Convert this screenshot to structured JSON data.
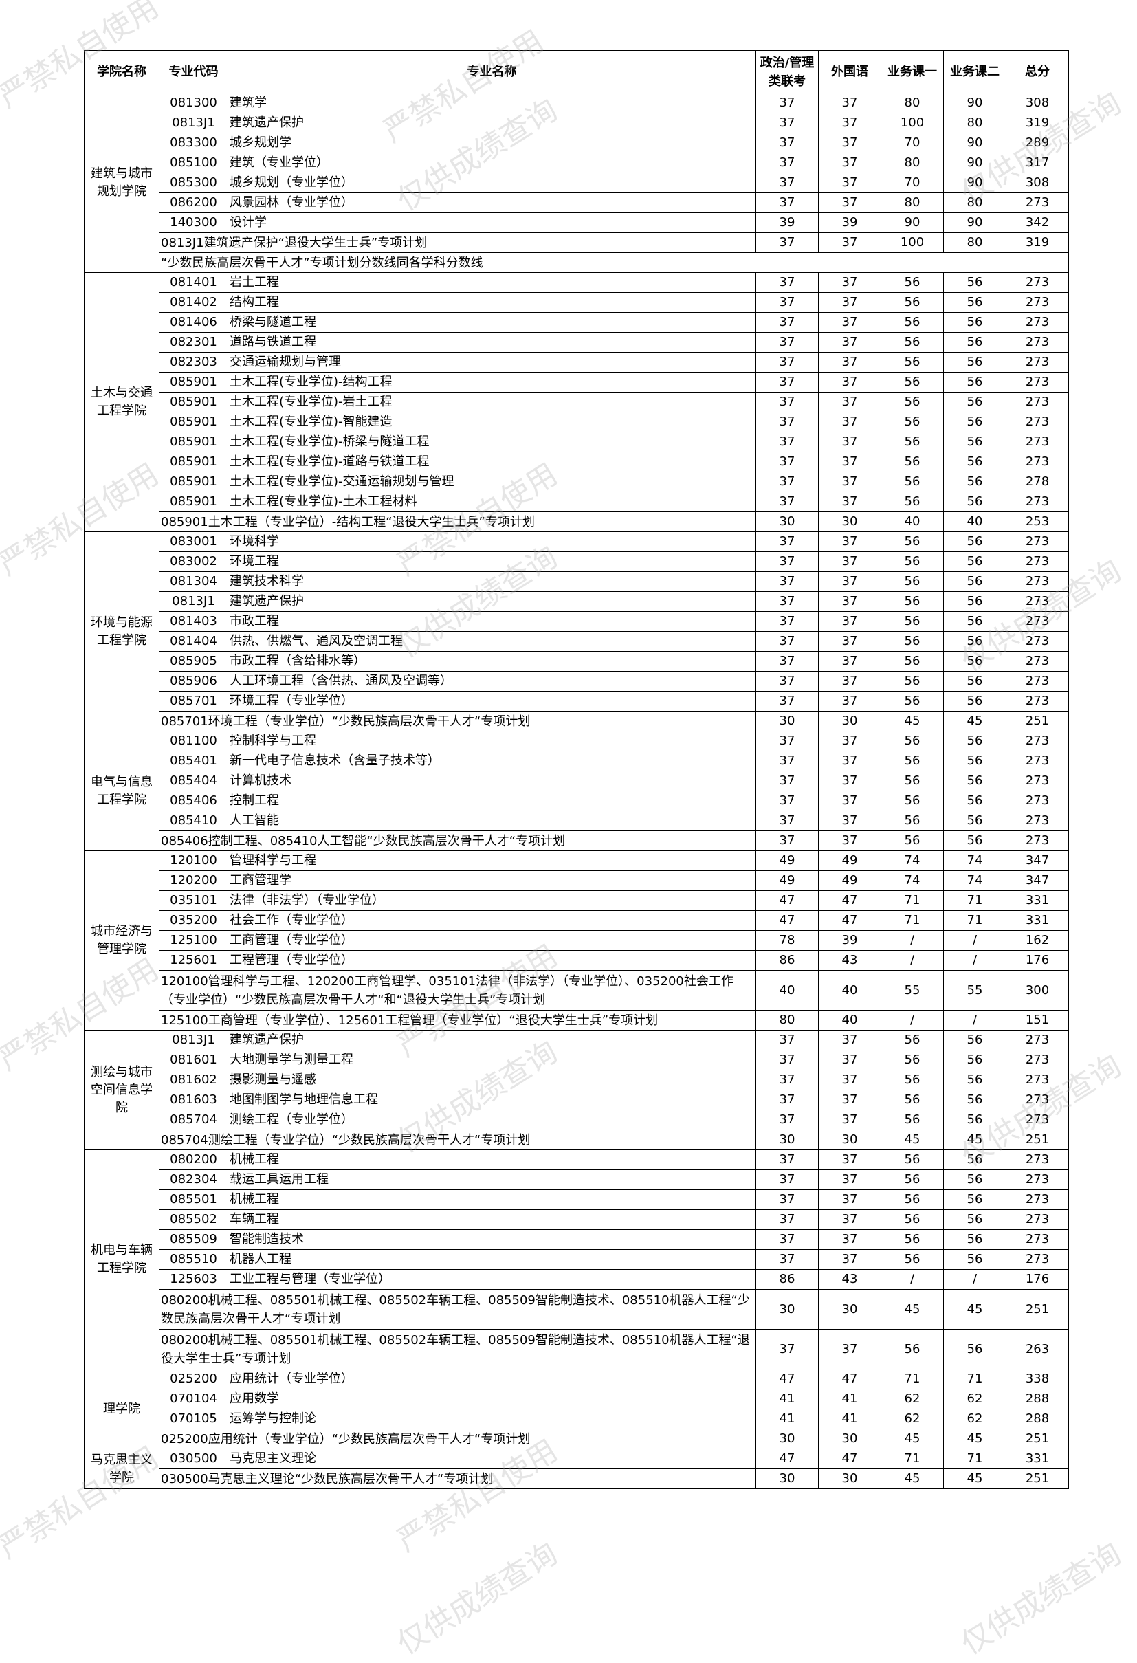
{
  "watermarks": [
    "严禁私自使用",
    "仅供成绩查询"
  ],
  "headers": {
    "college": "学院名称",
    "code": "专业代码",
    "name": "专业名称",
    "politics": "政治/管理类联考",
    "foreign": "外国语",
    "course1": "业务课一",
    "course2": "业务课二",
    "total": "总分"
  },
  "groups": [
    {
      "college": "建筑与城市规划学院",
      "rows": [
        {
          "code": "081300",
          "name": "建筑学",
          "scores": [
            "37",
            "37",
            "80",
            "90",
            "308"
          ]
        },
        {
          "code": "0813J1",
          "name": "建筑遗产保护",
          "scores": [
            "37",
            "37",
            "100",
            "80",
            "319"
          ]
        },
        {
          "code": "083300",
          "name": "城乡规划学",
          "scores": [
            "37",
            "37",
            "70",
            "90",
            "289"
          ]
        },
        {
          "code": "085100",
          "name": "建筑（专业学位）",
          "scores": [
            "37",
            "37",
            "80",
            "90",
            "317"
          ]
        },
        {
          "code": "085300",
          "name": "城乡规划（专业学位）",
          "scores": [
            "37",
            "37",
            "70",
            "90",
            "308"
          ]
        },
        {
          "code": "086200",
          "name": "风景园林（专业学位）",
          "scores": [
            "37",
            "37",
            "80",
            "80",
            "273"
          ]
        },
        {
          "code": "140300",
          "name": "设计学",
          "scores": [
            "39",
            "39",
            "90",
            "90",
            "342"
          ]
        },
        {
          "span": "0813J1建筑遗产保护“退役大学生士兵”专项计划",
          "scores": [
            "37",
            "37",
            "100",
            "80",
            "319"
          ]
        },
        {
          "note": "“少数民族高层次骨干人才”专项计划分数线同各学科分数线"
        }
      ]
    },
    {
      "college": "土木与交通工程学院",
      "rows": [
        {
          "code": "081401",
          "name": "岩土工程",
          "scores": [
            "37",
            "37",
            "56",
            "56",
            "273"
          ]
        },
        {
          "code": "081402",
          "name": "结构工程",
          "scores": [
            "37",
            "37",
            "56",
            "56",
            "273"
          ]
        },
        {
          "code": "081406",
          "name": "桥梁与隧道工程",
          "scores": [
            "37",
            "37",
            "56",
            "56",
            "273"
          ]
        },
        {
          "code": "082301",
          "name": "道路与铁道工程",
          "scores": [
            "37",
            "37",
            "56",
            "56",
            "273"
          ]
        },
        {
          "code": "082303",
          "name": "交通运输规划与管理",
          "scores": [
            "37",
            "37",
            "56",
            "56",
            "273"
          ]
        },
        {
          "code": "085901",
          "name": "土木工程(专业学位)-结构工程",
          "scores": [
            "37",
            "37",
            "56",
            "56",
            "273"
          ]
        },
        {
          "code": "085901",
          "name": "土木工程(专业学位)-岩土工程",
          "scores": [
            "37",
            "37",
            "56",
            "56",
            "273"
          ]
        },
        {
          "code": "085901",
          "name": "土木工程(专业学位)-智能建造",
          "scores": [
            "37",
            "37",
            "56",
            "56",
            "273"
          ]
        },
        {
          "code": "085901",
          "name": "土木工程(专业学位)-桥梁与隧道工程",
          "scores": [
            "37",
            "37",
            "56",
            "56",
            "273"
          ]
        },
        {
          "code": "085901",
          "name": "土木工程(专业学位)-道路与铁道工程",
          "scores": [
            "37",
            "37",
            "56",
            "56",
            "273"
          ]
        },
        {
          "code": "085901",
          "name": "土木工程(专业学位)-交通运输规划与管理",
          "scores": [
            "37",
            "37",
            "56",
            "56",
            "278"
          ]
        },
        {
          "code": "085901",
          "name": "土木工程(专业学位)-土木工程材料",
          "scores": [
            "37",
            "37",
            "56",
            "56",
            "273"
          ]
        },
        {
          "span": "085901土木工程（专业学位）-结构工程“退役大学生士兵”专项计划",
          "scores": [
            "30",
            "30",
            "40",
            "40",
            "253"
          ]
        }
      ]
    },
    {
      "college": "环境与能源工程学院",
      "rows": [
        {
          "code": "083001",
          "name": "环境科学",
          "scores": [
            "37",
            "37",
            "56",
            "56",
            "273"
          ]
        },
        {
          "code": "083002",
          "name": "环境工程",
          "scores": [
            "37",
            "37",
            "56",
            "56",
            "273"
          ]
        },
        {
          "code": "081304",
          "name": "建筑技术科学",
          "scores": [
            "37",
            "37",
            "56",
            "56",
            "273"
          ]
        },
        {
          "code": "0813J1",
          "name": "建筑遗产保护",
          "scores": [
            "37",
            "37",
            "56",
            "56",
            "273"
          ]
        },
        {
          "code": "081403",
          "name": "市政工程",
          "scores": [
            "37",
            "37",
            "56",
            "56",
            "273"
          ]
        },
        {
          "code": "081404",
          "name": "供热、供燃气、通风及空调工程",
          "scores": [
            "37",
            "37",
            "56",
            "56",
            "273"
          ]
        },
        {
          "code": "085905",
          "name": "市政工程（含给排水等）",
          "scores": [
            "37",
            "37",
            "56",
            "56",
            "273"
          ]
        },
        {
          "code": "085906",
          "name": "人工环境工程（含供热、通风及空调等）",
          "scores": [
            "37",
            "37",
            "56",
            "56",
            "273"
          ]
        },
        {
          "code": "085701",
          "name": "环境工程（专业学位）",
          "scores": [
            "37",
            "37",
            "56",
            "56",
            "273"
          ]
        },
        {
          "span": "085701环境工程（专业学位）“少数民族高层次骨干人才“专项计划",
          "scores": [
            "30",
            "30",
            "45",
            "45",
            "251"
          ]
        }
      ]
    },
    {
      "college": "电气与信息工程学院",
      "rows": [
        {
          "code": "081100",
          "name": "控制科学与工程",
          "scores": [
            "37",
            "37",
            "56",
            "56",
            "273"
          ]
        },
        {
          "code": "085401",
          "name": "新一代电子信息技术（含量子技术等）",
          "scores": [
            "37",
            "37",
            "56",
            "56",
            "273"
          ]
        },
        {
          "code": "085404",
          "name": "计算机技术",
          "scores": [
            "37",
            "37",
            "56",
            "56",
            "273"
          ]
        },
        {
          "code": "085406",
          "name": "控制工程",
          "scores": [
            "37",
            "37",
            "56",
            "56",
            "273"
          ]
        },
        {
          "code": "085410",
          "name": "人工智能",
          "scores": [
            "37",
            "37",
            "56",
            "56",
            "273"
          ]
        },
        {
          "span": "085406控制工程、085410人工智能“少数民族高层次骨干人才“专项计划",
          "scores": [
            "37",
            "37",
            "56",
            "56",
            "273"
          ]
        }
      ]
    },
    {
      "college": "城市经济与管理学院",
      "rows": [
        {
          "code": "120100",
          "name": "管理科学与工程",
          "scores": [
            "49",
            "49",
            "74",
            "74",
            "347"
          ]
        },
        {
          "code": "120200",
          "name": "工商管理学",
          "scores": [
            "49",
            "49",
            "74",
            "74",
            "347"
          ]
        },
        {
          "code": "035101",
          "name": "法律（非法学）（专业学位）",
          "scores": [
            "47",
            "47",
            "71",
            "71",
            "331"
          ]
        },
        {
          "code": "035200",
          "name": "社会工作（专业学位）",
          "scores": [
            "47",
            "47",
            "71",
            "71",
            "331"
          ]
        },
        {
          "code": "125100",
          "name": "工商管理（专业学位）",
          "scores": [
            "78",
            "39",
            "/",
            "/",
            "162"
          ]
        },
        {
          "code": "125601",
          "name": "工程管理（专业学位）",
          "scores": [
            "86",
            "43",
            "/",
            "/",
            "176"
          ]
        },
        {
          "span": "120100管理科学与工程、120200工商管理学、035101法律（非法学）（专业学位）、035200社会工作（专业学位）“少数民族高层次骨干人才“和“退役大学生士兵”专项计划",
          "dbl": true,
          "scores": [
            "40",
            "40",
            "55",
            "55",
            "300"
          ]
        },
        {
          "span": "125100工商管理（专业学位）、125601工程管理（专业学位）“退役大学生士兵”专项计划",
          "scores": [
            "80",
            "40",
            "/",
            "/",
            "151"
          ]
        }
      ]
    },
    {
      "college": "测绘与城市空间信息学院",
      "rows": [
        {
          "code": "0813J1",
          "name": "建筑遗产保护",
          "scores": [
            "37",
            "37",
            "56",
            "56",
            "273"
          ]
        },
        {
          "code": "081601",
          "name": "大地测量学与测量工程",
          "scores": [
            "37",
            "37",
            "56",
            "56",
            "273"
          ]
        },
        {
          "code": "081602",
          "name": "摄影测量与遥感",
          "scores": [
            "37",
            "37",
            "56",
            "56",
            "273"
          ]
        },
        {
          "code": "081603",
          "name": "地图制图学与地理信息工程",
          "scores": [
            "37",
            "37",
            "56",
            "56",
            "273"
          ]
        },
        {
          "code": "085704",
          "name": "测绘工程（专业学位）",
          "scores": [
            "37",
            "37",
            "56",
            "56",
            "273"
          ]
        },
        {
          "span": "085704测绘工程（专业学位）“少数民族高层次骨干人才“专项计划",
          "scores": [
            "30",
            "30",
            "45",
            "45",
            "251"
          ]
        }
      ]
    },
    {
      "college": "机电与车辆工程学院",
      "rows": [
        {
          "code": "080200",
          "name": "机械工程",
          "scores": [
            "37",
            "37",
            "56",
            "56",
            "273"
          ]
        },
        {
          "code": "082304",
          "name": "载运工具运用工程",
          "scores": [
            "37",
            "37",
            "56",
            "56",
            "273"
          ]
        },
        {
          "code": "085501",
          "name": "机械工程",
          "scores": [
            "37",
            "37",
            "56",
            "56",
            "273"
          ]
        },
        {
          "code": "085502",
          "name": "车辆工程",
          "scores": [
            "37",
            "37",
            "56",
            "56",
            "273"
          ]
        },
        {
          "code": "085509",
          "name": "智能制造技术",
          "scores": [
            "37",
            "37",
            "56",
            "56",
            "273"
          ]
        },
        {
          "code": "085510",
          "name": "机器人工程",
          "scores": [
            "37",
            "37",
            "56",
            "56",
            "273"
          ]
        },
        {
          "code": "125603",
          "name": "工业工程与管理（专业学位）",
          "scores": [
            "86",
            "43",
            "/",
            "/",
            "176"
          ]
        },
        {
          "span": "080200机械工程、085501机械工程、085502车辆工程、085509智能制造技术、085510机器人工程“少数民族高层次骨干人才“专项计划",
          "dbl": true,
          "scores": [
            "30",
            "30",
            "45",
            "45",
            "251"
          ]
        },
        {
          "span": "080200机械工程、085501机械工程、085502车辆工程、085509智能制造技术、085510机器人工程“退役大学生士兵”专项计划",
          "dbl": true,
          "scores": [
            "37",
            "37",
            "56",
            "56",
            "263"
          ]
        }
      ]
    },
    {
      "college": "理学院",
      "rows": [
        {
          "code": "025200",
          "name": "应用统计（专业学位）",
          "scores": [
            "47",
            "47",
            "71",
            "71",
            "338"
          ]
        },
        {
          "code": "070104",
          "name": "应用数学",
          "scores": [
            "41",
            "41",
            "62",
            "62",
            "288"
          ]
        },
        {
          "code": "070105",
          "name": "运筹学与控制论",
          "scores": [
            "41",
            "41",
            "62",
            "62",
            "288"
          ]
        },
        {
          "span": "025200应用统计（专业学位）“少数民族高层次骨干人才“专项计划",
          "scores": [
            "30",
            "30",
            "45",
            "45",
            "251"
          ]
        }
      ]
    },
    {
      "college": "马克思主义学院",
      "rows": [
        {
          "code": "030500",
          "name": "马克思主义理论",
          "scores": [
            "47",
            "47",
            "71",
            "71",
            "331"
          ]
        },
        {
          "span": "030500马克思主义理论“少数民族高层次骨干人才“专项计划",
          "scores": [
            "30",
            "30",
            "45",
            "45",
            "251"
          ]
        }
      ]
    }
  ]
}
